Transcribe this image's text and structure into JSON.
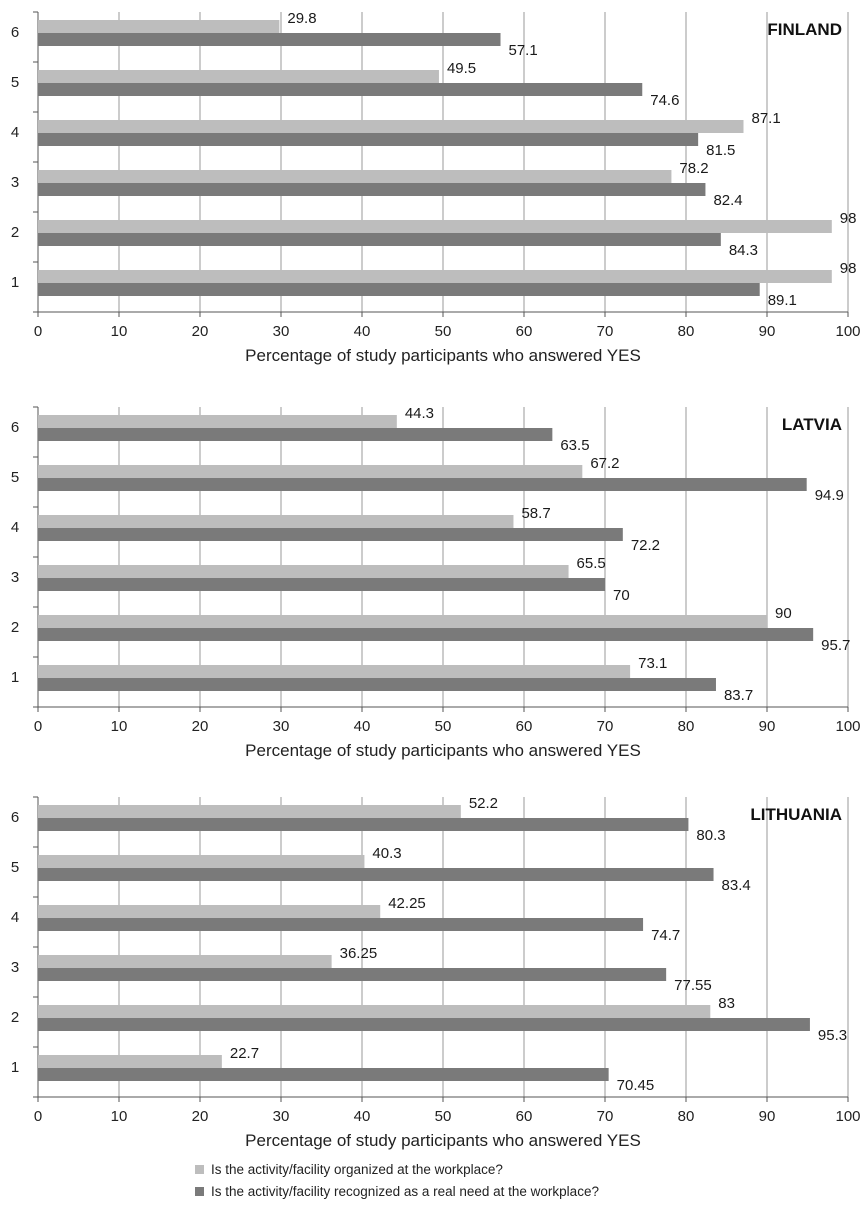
{
  "colors": {
    "organized": "#bdbdbd",
    "need": "#7a7a7a",
    "grid": "#9a9a9a",
    "axis": "#555555"
  },
  "legend": {
    "organized": "Is the activity/facility organized at the workplace?",
    "need": "Is the activity/facility recognized as a real need at the workplace?"
  },
  "chart_data": [
    {
      "type": "bar",
      "orientation": "horizontal",
      "title": "FINLAND",
      "xlabel": "Percentage of study participants who answered YES",
      "ylabel": "",
      "xlim": [
        0,
        100
      ],
      "xticks": [
        0,
        10,
        20,
        30,
        40,
        50,
        60,
        70,
        80,
        90,
        100
      ],
      "categories": [
        "6",
        "5",
        "4",
        "3",
        "2",
        "1"
      ],
      "grid": "vertical",
      "series": [
        {
          "key": "organized",
          "values": [
            29.8,
            49.5,
            87.1,
            78.2,
            98,
            98
          ],
          "labels": [
            "29.8",
            "49.5",
            "87.1",
            "78.2",
            "98",
            "98"
          ]
        },
        {
          "key": "need",
          "values": [
            57.1,
            74.6,
            81.5,
            82.4,
            84.3,
            89.1
          ],
          "labels": [
            "57.1",
            "74.6",
            "81.5",
            "82.4",
            "84.3",
            "89.1"
          ]
        }
      ]
    },
    {
      "type": "bar",
      "orientation": "horizontal",
      "title": "LATVIA",
      "xlabel": "Percentage of study participants who answered YES",
      "ylabel": "",
      "xlim": [
        0,
        100
      ],
      "xticks": [
        0,
        10,
        20,
        30,
        40,
        50,
        60,
        70,
        80,
        90,
        100
      ],
      "categories": [
        "6",
        "5",
        "4",
        "3",
        "2",
        "1"
      ],
      "grid": "vertical",
      "series": [
        {
          "key": "organized",
          "values": [
            44.3,
            67.2,
            58.7,
            65.5,
            90,
            73.1
          ],
          "labels": [
            "44.3",
            "67.2",
            "58.7",
            "65.5",
            "90",
            "73.1"
          ]
        },
        {
          "key": "need",
          "values": [
            63.5,
            94.9,
            72.2,
            70,
            95.7,
            83.7
          ],
          "labels": [
            "63.5",
            "94.9",
            "72.2",
            "70",
            "95.7",
            "83.7"
          ]
        }
      ]
    },
    {
      "type": "bar",
      "orientation": "horizontal",
      "title": "LITHUANIA",
      "xlabel": "Percentage of study participants who answered YES",
      "ylabel": "",
      "xlim": [
        0,
        100
      ],
      "xticks": [
        0,
        10,
        20,
        30,
        40,
        50,
        60,
        70,
        80,
        90,
        100
      ],
      "categories": [
        "6",
        "5",
        "4",
        "3",
        "2",
        "1"
      ],
      "grid": "vertical",
      "series": [
        {
          "key": "organized",
          "values": [
            52.2,
            40.3,
            42.25,
            36.25,
            83,
            22.7
          ],
          "labels": [
            "52.2",
            "40.3",
            "42.25",
            "36.25",
            "83",
            "22.7"
          ]
        },
        {
          "key": "need",
          "values": [
            80.3,
            83.4,
            74.7,
            77.55,
            95.3,
            70.45
          ],
          "labels": [
            "80.3",
            "83.4",
            "74.7",
            "77.55",
            "95.3",
            "70.45"
          ]
        }
      ]
    }
  ]
}
